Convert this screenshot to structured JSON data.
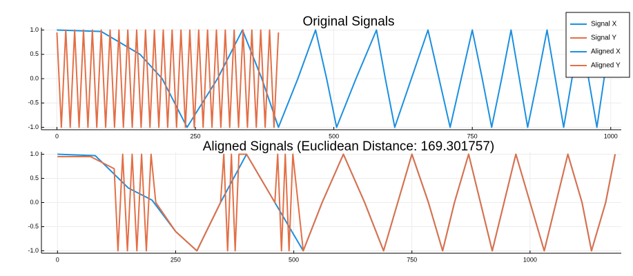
{
  "chart_data": [
    {
      "type": "line",
      "title": "Original Signals",
      "grid": true,
      "legend": "top-right",
      "xlim": [
        -28,
        1019
      ],
      "ylim": [
        -1.05,
        1.05
      ],
      "xticks": [
        0,
        250,
        500,
        750,
        1000
      ],
      "yticks": [
        {
          "value": -1,
          "label": "-1.0"
        },
        {
          "value": -0.5,
          "label": "-0.5"
        },
        {
          "value": 0,
          "label": "0.0"
        },
        {
          "value": 0.5,
          "label": "0.5"
        },
        {
          "value": 1,
          "label": "1.0"
        }
      ],
      "series": [
        {
          "name": "Signal X",
          "color": "#1a8fe0",
          "x": [
            0,
            80,
            150,
            190,
            235,
            290,
            335,
            370,
            400,
            435,
            467,
            487,
            505,
            540,
            577,
            593,
            610,
            640,
            670,
            690,
            710,
            730,
            750,
            768,
            785,
            803,
            820,
            835,
            850,
            868,
            885,
            900,
            915,
            930,
            945,
            960,
            975,
            988,
            1000
          ],
          "values": [
            1,
            0.97,
            0.5,
            0,
            -1,
            0,
            1,
            0,
            -1,
            0,
            1,
            0,
            -1,
            0,
            1,
            0,
            -1,
            0,
            1,
            0,
            -1,
            0,
            1,
            0,
            -1,
            0,
            1,
            0,
            -1,
            0,
            1,
            0,
            -1,
            0,
            1,
            0,
            -1,
            0,
            1
          ]
        },
        {
          "name": "Signal Y",
          "color": "#e26f46",
          "x": [
            0,
            8,
            16,
            24,
            32,
            40,
            48,
            56,
            64,
            72,
            80,
            88,
            96,
            104,
            112,
            120,
            128,
            136,
            144,
            152,
            160,
            168,
            176,
            184,
            192,
            200,
            208,
            216,
            224,
            232,
            240,
            248,
            256,
            264,
            272,
            280,
            288,
            296,
            304,
            312,
            320,
            328,
            336,
            344,
            352,
            360,
            368,
            376,
            384,
            392,
            400
          ],
          "values": [
            0.95,
            -1,
            1,
            -1,
            1,
            -1,
            1,
            -1,
            1,
            -1,
            1,
            -1,
            1,
            -1,
            1,
            -1,
            1,
            -1,
            1,
            -1,
            1,
            -1,
            1,
            -1,
            1,
            -1,
            1,
            -1,
            1,
            -1,
            1,
            -1,
            1,
            -1,
            1,
            -1,
            1,
            -1,
            1,
            -1,
            1,
            -1,
            1,
            -1,
            1,
            -1,
            1,
            -1,
            1,
            -1,
            0.95
          ]
        }
      ]
    },
    {
      "type": "line",
      "title": "Aligned Signals (Euclidean Distance: 169.301757)",
      "grid": true,
      "xlim": [
        -34,
        1193
      ],
      "ylim": [
        -1.05,
        1.05
      ],
      "xticks": [
        0,
        250,
        500,
        750,
        1000
      ],
      "yticks": [
        {
          "value": -1,
          "label": "-1.0"
        },
        {
          "value": -0.5,
          "label": "-0.5"
        },
        {
          "value": 0,
          "label": "0.0"
        },
        {
          "value": 0.5,
          "label": "0.5"
        },
        {
          "value": 1,
          "label": "1.0"
        }
      ],
      "series": [
        {
          "name": "Aligned X",
          "color": "#1a8fe0",
          "x": [
            0,
            80,
            150,
            200,
            250,
            295,
            345,
            400,
            460,
            520,
            560,
            605,
            650,
            690,
            720,
            750,
            785,
            815,
            840,
            870,
            895,
            920,
            945,
            970,
            1000,
            1030,
            1055,
            1080,
            1110,
            1130,
            1160,
            1180
          ],
          "values": [
            1,
            0.97,
            0.3,
            0.05,
            -0.6,
            -1,
            0,
            1,
            0,
            -1,
            0,
            1,
            0,
            -1,
            0,
            1,
            0,
            -1,
            0,
            1,
            0,
            -1,
            0,
            1,
            0,
            -1,
            0,
            1,
            0,
            -1,
            0,
            1
          ]
        },
        {
          "name": "Aligned Y",
          "color": "#e26f46",
          "x": [
            0,
            70,
            120,
            128,
            138,
            148,
            158,
            168,
            178,
            188,
            198,
            208,
            250,
            295,
            345,
            352,
            360,
            368,
            376,
            384,
            400,
            460,
            466,
            474,
            482,
            490,
            498,
            520,
            560,
            605,
            650,
            690,
            720,
            750,
            785,
            815,
            840,
            870,
            895,
            920,
            945,
            970,
            1000,
            1030,
            1055,
            1080,
            1110,
            1130,
            1160,
            1180
          ],
          "values": [
            0.95,
            0.95,
            0.7,
            -1,
            1,
            -1,
            1,
            -1,
            1,
            -1,
            1,
            0,
            -0.6,
            -1,
            0,
            1,
            -1,
            1,
            -1,
            1,
            1,
            0,
            1,
            -1,
            1,
            -1,
            1,
            -1,
            0,
            1,
            0,
            -1,
            0,
            1,
            0,
            -1,
            0,
            1,
            0,
            -1,
            0,
            1,
            0,
            -1,
            0,
            1,
            0,
            -1,
            0,
            1
          ]
        }
      ]
    }
  ]
}
